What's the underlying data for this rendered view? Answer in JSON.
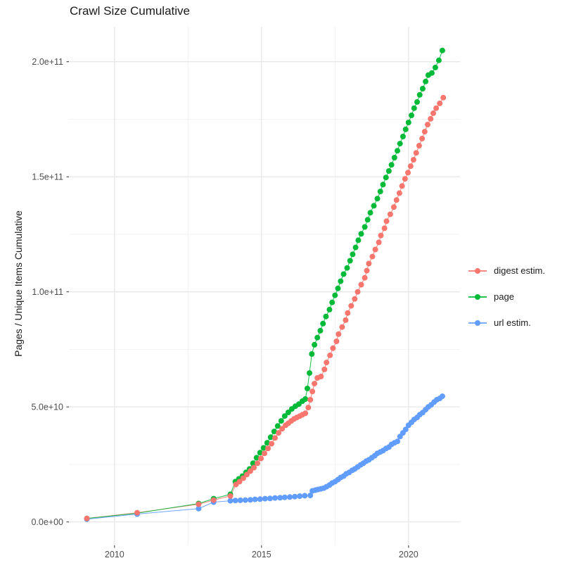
{
  "chart_data": {
    "type": "scatter",
    "title": "Crawl Size Cumulative",
    "xlabel": "",
    "ylabel": "Pages / Unique Items Cumulative",
    "value_unit": "items, stored in billions (1e9)",
    "xlim": [
      2008.45,
      2021.75
    ],
    "ylim_billions": [
      -10.2,
      215.2
    ],
    "grid": true,
    "legend_position": "right",
    "x_ticks": [
      {
        "value": 2010,
        "label": "2010"
      },
      {
        "value": 2015,
        "label": "2015"
      },
      {
        "value": 2020,
        "label": "2020"
      }
    ],
    "x_minor_ticks": [
      2012.5,
      2017.5
    ],
    "y_ticks": [
      {
        "value_billions": 0,
        "label": "0.0e+00"
      },
      {
        "value_billions": 50,
        "label": "5.0e+10"
      },
      {
        "value_billions": 100,
        "label": "1.0e+11"
      },
      {
        "value_billions": 150,
        "label": "1.5e+11"
      },
      {
        "value_billions": 200,
        "label": "2.0e+11"
      }
    ],
    "y_minor_ticks_billions": [
      25,
      75,
      125,
      175
    ],
    "series": [
      {
        "name": "digest estim.",
        "color": "#F8766D",
        "points_year_billions": [
          [
            2009.06,
            1.5
          ],
          [
            2010.77,
            4.0
          ],
          [
            2012.86,
            7.7
          ],
          [
            2013.37,
            9.5
          ],
          [
            2013.94,
            11.3
          ],
          [
            2014.13,
            16.3
          ],
          [
            2014.25,
            17.5
          ],
          [
            2014.38,
            19.0
          ],
          [
            2014.5,
            20.6
          ],
          [
            2014.62,
            22.1
          ],
          [
            2014.74,
            23.6
          ],
          [
            2014.86,
            25.5
          ],
          [
            2014.98,
            27.6
          ],
          [
            2015.1,
            29.8
          ],
          [
            2015.22,
            31.9
          ],
          [
            2015.34,
            34.0
          ],
          [
            2015.46,
            36.5
          ],
          [
            2015.58,
            38.7
          ],
          [
            2015.7,
            40.5
          ],
          [
            2015.82,
            42.0
          ],
          [
            2015.91,
            42.9
          ],
          [
            2016.01,
            43.9
          ],
          [
            2016.11,
            44.8
          ],
          [
            2016.2,
            45.4
          ],
          [
            2016.3,
            46.0
          ],
          [
            2016.39,
            46.6
          ],
          [
            2016.49,
            47.2
          ],
          [
            2016.59,
            49.7
          ],
          [
            2016.66,
            53.1
          ],
          [
            2016.73,
            56.7
          ],
          [
            2016.8,
            60.1
          ],
          [
            2016.9,
            62.6
          ],
          [
            2017.02,
            63.2
          ],
          [
            2017.14,
            66.3
          ],
          [
            2017.21,
            69.3
          ],
          [
            2017.33,
            72.4
          ],
          [
            2017.43,
            75.5
          ],
          [
            2017.55,
            78.5
          ],
          [
            2017.62,
            81.6
          ],
          [
            2017.74,
            84.7
          ],
          [
            2017.86,
            87.7
          ],
          [
            2017.93,
            90.8
          ],
          [
            2018.05,
            93.9
          ],
          [
            2018.17,
            96.9
          ],
          [
            2018.27,
            100.0
          ],
          [
            2018.39,
            103.1
          ],
          [
            2018.51,
            106.1
          ],
          [
            2018.58,
            109.2
          ],
          [
            2018.65,
            112.3
          ],
          [
            2018.77,
            115.3
          ],
          [
            2018.87,
            118.4
          ],
          [
            2018.99,
            121.5
          ],
          [
            2019.06,
            124.5
          ],
          [
            2019.18,
            127.6
          ],
          [
            2019.25,
            130.7
          ],
          [
            2019.38,
            133.7
          ],
          [
            2019.5,
            136.8
          ],
          [
            2019.59,
            139.9
          ],
          [
            2019.69,
            142.9
          ],
          [
            2019.78,
            146.0
          ],
          [
            2019.88,
            149.1
          ],
          [
            2019.98,
            151.8
          ],
          [
            2020.07,
            154.6
          ],
          [
            2020.17,
            157.4
          ],
          [
            2020.26,
            160.4
          ],
          [
            2020.36,
            163.5
          ],
          [
            2020.46,
            166.6
          ],
          [
            2020.55,
            169.6
          ],
          [
            2020.65,
            172.7
          ],
          [
            2020.75,
            175.2
          ],
          [
            2020.84,
            177.6
          ],
          [
            2020.94,
            179.8
          ],
          [
            2021.06,
            181.9
          ],
          [
            2021.18,
            184.4
          ]
        ]
      },
      {
        "name": "page",
        "color": "#00BA38",
        "points_year_billions": [
          [
            2009.06,
            1.5
          ],
          [
            2010.77,
            3.8
          ],
          [
            2012.86,
            8.0
          ],
          [
            2013.37,
            10.1
          ],
          [
            2013.94,
            12.0
          ],
          [
            2014.11,
            17.5
          ],
          [
            2014.23,
            18.7
          ],
          [
            2014.35,
            19.9
          ],
          [
            2014.47,
            21.5
          ],
          [
            2014.59,
            23.0
          ],
          [
            2014.71,
            25.5
          ],
          [
            2014.83,
            27.9
          ],
          [
            2014.95,
            30.1
          ],
          [
            2015.07,
            32.2
          ],
          [
            2015.19,
            34.4
          ],
          [
            2015.31,
            36.8
          ],
          [
            2015.43,
            39.3
          ],
          [
            2015.55,
            41.7
          ],
          [
            2015.67,
            43.9
          ],
          [
            2015.79,
            46.0
          ],
          [
            2015.91,
            47.6
          ],
          [
            2016.03,
            49.1
          ],
          [
            2016.15,
            50.3
          ],
          [
            2016.27,
            51.2
          ],
          [
            2016.39,
            52.5
          ],
          [
            2016.49,
            53.4
          ],
          [
            2016.56,
            58.0
          ],
          [
            2016.63,
            64.7
          ],
          [
            2016.71,
            73.0
          ],
          [
            2016.8,
            77.0
          ],
          [
            2016.9,
            80.1
          ],
          [
            2017.0,
            83.1
          ],
          [
            2017.09,
            86.2
          ],
          [
            2017.19,
            89.3
          ],
          [
            2017.31,
            92.3
          ],
          [
            2017.4,
            95.4
          ],
          [
            2017.5,
            98.5
          ],
          [
            2017.6,
            101.5
          ],
          [
            2017.69,
            104.6
          ],
          [
            2017.79,
            107.7
          ],
          [
            2017.91,
            110.4
          ],
          [
            2018.01,
            113.5
          ],
          [
            2018.1,
            116.3
          ],
          [
            2018.2,
            119.3
          ],
          [
            2018.29,
            122.4
          ],
          [
            2018.39,
            125.2
          ],
          [
            2018.51,
            128.2
          ],
          [
            2018.61,
            131.3
          ],
          [
            2018.7,
            134.4
          ],
          [
            2018.82,
            137.4
          ],
          [
            2018.94,
            140.5
          ],
          [
            2019.04,
            143.6
          ],
          [
            2019.13,
            146.6
          ],
          [
            2019.23,
            149.7
          ],
          [
            2019.33,
            152.5
          ],
          [
            2019.42,
            155.2
          ],
          [
            2019.52,
            158.3
          ],
          [
            2019.62,
            161.3
          ],
          [
            2019.71,
            164.4
          ],
          [
            2019.81,
            167.5
          ],
          [
            2019.9,
            170.6
          ],
          [
            2020.0,
            173.6
          ],
          [
            2020.1,
            176.7
          ],
          [
            2020.19,
            179.8
          ],
          [
            2020.29,
            182.5
          ],
          [
            2020.38,
            185.6
          ],
          [
            2020.48,
            188.3
          ],
          [
            2020.58,
            191.4
          ],
          [
            2020.67,
            194.2
          ],
          [
            2020.79,
            195.1
          ],
          [
            2020.91,
            197.5
          ],
          [
            2021.03,
            200.6
          ],
          [
            2021.15,
            204.9
          ]
        ]
      },
      {
        "name": "url estim.",
        "color": "#619CFF",
        "points_year_billions": [
          [
            2009.06,
            1.2
          ],
          [
            2010.77,
            3.4
          ],
          [
            2012.86,
            5.8
          ],
          [
            2013.37,
            8.6
          ],
          [
            2013.94,
            9.2
          ],
          [
            2014.11,
            9.3
          ],
          [
            2014.28,
            9.4
          ],
          [
            2014.45,
            9.5
          ],
          [
            2014.62,
            9.6
          ],
          [
            2014.78,
            9.8
          ],
          [
            2014.95,
            9.9
          ],
          [
            2015.12,
            10.1
          ],
          [
            2015.29,
            10.2
          ],
          [
            2015.46,
            10.4
          ],
          [
            2015.63,
            10.5
          ],
          [
            2015.79,
            10.7
          ],
          [
            2015.96,
            10.8
          ],
          [
            2016.13,
            11.0
          ],
          [
            2016.3,
            11.2
          ],
          [
            2016.47,
            11.4
          ],
          [
            2016.66,
            11.5
          ],
          [
            2016.73,
            13.5
          ],
          [
            2016.83,
            13.8
          ],
          [
            2016.92,
            14.1
          ],
          [
            2017.02,
            14.4
          ],
          [
            2017.12,
            14.7
          ],
          [
            2017.21,
            15.3
          ],
          [
            2017.31,
            16.0
          ],
          [
            2017.4,
            16.9
          ],
          [
            2017.5,
            17.5
          ],
          [
            2017.6,
            18.4
          ],
          [
            2017.69,
            19.3
          ],
          [
            2017.79,
            19.9
          ],
          [
            2017.88,
            20.9
          ],
          [
            2017.98,
            21.5
          ],
          [
            2018.08,
            22.4
          ],
          [
            2018.17,
            23.0
          ],
          [
            2018.27,
            23.9
          ],
          [
            2018.37,
            24.8
          ],
          [
            2018.46,
            25.5
          ],
          [
            2018.56,
            26.4
          ],
          [
            2018.65,
            27.0
          ],
          [
            2018.75,
            27.9
          ],
          [
            2018.85,
            28.8
          ],
          [
            2018.94,
            29.8
          ],
          [
            2019.04,
            30.4
          ],
          [
            2019.13,
            31.0
          ],
          [
            2019.23,
            31.9
          ],
          [
            2019.33,
            32.5
          ],
          [
            2019.42,
            33.7
          ],
          [
            2019.52,
            34.4
          ],
          [
            2019.62,
            35.0
          ],
          [
            2019.71,
            37.1
          ],
          [
            2019.81,
            38.7
          ],
          [
            2019.9,
            40.2
          ],
          [
            2020.0,
            42.0
          ],
          [
            2020.1,
            43.3
          ],
          [
            2020.19,
            44.5
          ],
          [
            2020.29,
            45.4
          ],
          [
            2020.38,
            46.6
          ],
          [
            2020.48,
            47.5
          ],
          [
            2020.58,
            48.8
          ],
          [
            2020.67,
            50.0
          ],
          [
            2020.77,
            50.9
          ],
          [
            2020.87,
            52.1
          ],
          [
            2020.96,
            53.1
          ],
          [
            2021.06,
            53.7
          ],
          [
            2021.15,
            54.6
          ]
        ]
      }
    ]
  }
}
